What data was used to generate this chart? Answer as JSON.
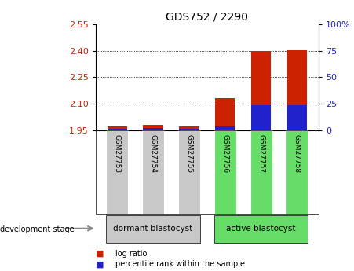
{
  "title": "GDS752 / 2290",
  "samples": [
    "GSM27753",
    "GSM27754",
    "GSM27755",
    "GSM27756",
    "GSM27757",
    "GSM27758"
  ],
  "base": 1.95,
  "log_ratio_tops": [
    1.972,
    1.978,
    1.972,
    2.13,
    2.4,
    2.405
  ],
  "percentile_tops": [
    1.958,
    1.962,
    1.957,
    1.972,
    2.09,
    2.09
  ],
  "ylim_left": [
    1.95,
    2.55
  ],
  "ylim_right": [
    0,
    100
  ],
  "yticks_left": [
    1.95,
    2.1,
    2.25,
    2.4,
    2.55
  ],
  "yticks_right": [
    0,
    25,
    50,
    75,
    100
  ],
  "groups": [
    {
      "label": "dormant blastocyst",
      "indices": [
        0,
        1,
        2
      ],
      "color": "#c8c8c8"
    },
    {
      "label": "active blastocyst",
      "indices": [
        3,
        4,
        5
      ],
      "color": "#66dd66"
    }
  ],
  "group_row_label": "development stage",
  "bar_color_red": "#cc2200",
  "bar_color_blue": "#2222cc",
  "bar_width": 0.55,
  "legend_red_label": "log ratio",
  "legend_blue_label": "percentile rank within the sample",
  "tick_color_left": "#cc2200",
  "tick_color_right": "#2222cc"
}
